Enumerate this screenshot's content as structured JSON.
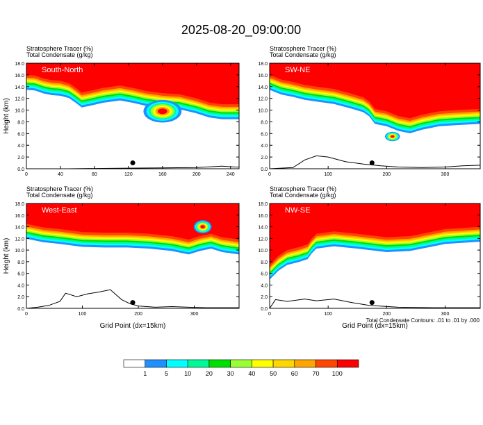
{
  "page": {
    "title": "2025-08-20_09:00:00",
    "footnote": "Total Condensate Contours: .01 to .01 by .000"
  },
  "colorbar": {
    "labels": [
      "1",
      "5",
      "10",
      "20",
      "30",
      "40",
      "50",
      "60",
      "70",
      "100"
    ],
    "colors": [
      "#ffffff",
      "#1e90ff",
      "#00ffff",
      "#00fa9a",
      "#00e000",
      "#9aff32",
      "#ffff00",
      "#ffd700",
      "#ffa500",
      "#ff4500",
      "#ff0000"
    ]
  },
  "chart_data": [
    {
      "type": "heatmap",
      "panel": "South-North",
      "label1": "Stratosphere Tracer   (%)",
      "label2": "Total Condensate   (g/kg)",
      "ylabel": "Height (km)",
      "xlabel": "",
      "xlim": [
        0,
        250
      ],
      "ylim": [
        0,
        18
      ],
      "xticks": [
        "0",
        "40",
        "80",
        "120",
        "160",
        "200",
        "240"
      ],
      "xtick_values": [
        0,
        40,
        80,
        120,
        160,
        200,
        240
      ],
      "yticks": [
        "0.0",
        "2.0",
        "4.0",
        "6.0",
        "8.0",
        "10.0",
        "12.0",
        "14.0",
        "16.0",
        "18.0"
      ],
      "tropopause": [
        [
          0,
          16
        ],
        [
          10,
          15.9
        ],
        [
          20,
          15.4
        ],
        [
          30,
          15.1
        ],
        [
          40,
          15.0
        ],
        [
          50,
          14.6
        ],
        [
          58,
          13.8
        ],
        [
          65,
          13.0
        ],
        [
          75,
          13.3
        ],
        [
          90,
          13.8
        ],
        [
          110,
          14.2
        ],
        [
          125,
          13.8
        ],
        [
          140,
          13.3
        ],
        [
          160,
          12.9
        ],
        [
          180,
          12.7
        ],
        [
          200,
          12.0
        ],
        [
          215,
          11.3
        ],
        [
          230,
          11.0
        ],
        [
          250,
          11.0
        ]
      ],
      "blobs": [
        [
          160,
          9.8,
          14,
          1.2
        ]
      ],
      "terrain": [
        [
          0,
          0
        ],
        [
          50,
          0
        ],
        [
          80,
          0.05
        ],
        [
          120,
          0.1
        ],
        [
          160,
          0.15
        ],
        [
          200,
          0.2
        ],
        [
          230,
          0.45
        ],
        [
          245,
          0.3
        ],
        [
          250,
          0.3
        ]
      ],
      "marker": [
        125,
        1.0
      ]
    },
    {
      "type": "heatmap",
      "panel": "SW-NE",
      "label1": "Stratosphere Tracer   (%)",
      "label2": "Total Condensate   (g/kg)",
      "ylabel": "",
      "xlabel": "",
      "xlim": [
        0,
        360
      ],
      "ylim": [
        0,
        18
      ],
      "xticks": [
        "0",
        "100",
        "200",
        "300"
      ],
      "xtick_values": [
        0,
        100,
        200,
        300
      ],
      "yticks": [
        "0.0",
        "2.0",
        "4.0",
        "6.0",
        "8.0",
        "10.0",
        "12.0",
        "14.0",
        "16.0",
        "18.0"
      ],
      "tropopause": [
        [
          0,
          16
        ],
        [
          20,
          15.2
        ],
        [
          40,
          14.8
        ],
        [
          60,
          14.3
        ],
        [
          80,
          14.0
        ],
        [
          110,
          13.6
        ],
        [
          140,
          12.8
        ],
        [
          160,
          12.2
        ],
        [
          170,
          11.5
        ],
        [
          180,
          10.2
        ],
        [
          200,
          9.8
        ],
        [
          220,
          9.0
        ],
        [
          240,
          8.6
        ],
        [
          260,
          9.2
        ],
        [
          290,
          9.8
        ],
        [
          320,
          10.0
        ],
        [
          360,
          10.2
        ]
      ],
      "blobs": [
        [
          210,
          5.5,
          8,
          0.5
        ]
      ],
      "terrain": [
        [
          0,
          0
        ],
        [
          40,
          0.2
        ],
        [
          60,
          1.5
        ],
        [
          80,
          2.2
        ],
        [
          100,
          2.0
        ],
        [
          130,
          1.2
        ],
        [
          160,
          0.8
        ],
        [
          190,
          0.5
        ],
        [
          220,
          0.3
        ],
        [
          260,
          0.2
        ],
        [
          300,
          0.3
        ],
        [
          330,
          0.5
        ],
        [
          360,
          0.6
        ]
      ],
      "marker": [
        175,
        1.0
      ]
    },
    {
      "type": "heatmap",
      "panel": "West-East",
      "label1": "Stratosphere Tracer   (%)",
      "label2": "Total Condensate   (g/kg)",
      "ylabel": "Height (km)",
      "xlabel": "Grid Point (dx=15km)",
      "xlim": [
        0,
        380
      ],
      "ylim": [
        0,
        18
      ],
      "xticks": [
        "0",
        "100",
        "200",
        "300"
      ],
      "xtick_values": [
        0,
        100,
        200,
        300
      ],
      "yticks": [
        "0.0",
        "2.0",
        "4.0",
        "6.0",
        "8.0",
        "10.0",
        "12.0",
        "14.0",
        "16.0",
        "18.0"
      ],
      "tropopause": [
        [
          0,
          14.5
        ],
        [
          30,
          13.9
        ],
        [
          60,
          13.6
        ],
        [
          100,
          13.1
        ],
        [
          140,
          13.0
        ],
        [
          180,
          13.0
        ],
        [
          220,
          12.8
        ],
        [
          260,
          12.4
        ],
        [
          290,
          11.8
        ],
        [
          310,
          12.4
        ],
        [
          330,
          12.8
        ],
        [
          350,
          12.2
        ],
        [
          380,
          11.8
        ]
      ],
      "blobs": [
        [
          315,
          14.0,
          10,
          0.7
        ]
      ],
      "terrain": [
        [
          0,
          0
        ],
        [
          20,
          0.2
        ],
        [
          40,
          0.5
        ],
        [
          60,
          1.2
        ],
        [
          70,
          2.6
        ],
        [
          90,
          2.0
        ],
        [
          110,
          2.5
        ],
        [
          130,
          2.8
        ],
        [
          150,
          3.2
        ],
        [
          170,
          1.5
        ],
        [
          185,
          0.8
        ],
        [
          200,
          0.4
        ],
        [
          230,
          0.2
        ],
        [
          260,
          0.3
        ],
        [
          290,
          0.2
        ],
        [
          320,
          0.1
        ],
        [
          380,
          0.1
        ]
      ],
      "marker": [
        190,
        1.0
      ]
    },
    {
      "type": "heatmap",
      "panel": "NW-SE",
      "label1": "Stratosphere Tracer   (%)",
      "label2": "Total Condensate   (g/kg)",
      "ylabel": "",
      "xlabel": "Grid Point (dx=15km)",
      "xlim": [
        0,
        360
      ],
      "ylim": [
        0,
        18
      ],
      "xticks": [
        "0",
        "100",
        "200",
        "300"
      ],
      "xtick_values": [
        0,
        100,
        200,
        300
      ],
      "yticks": [
        "0.0",
        "2.0",
        "4.0",
        "6.0",
        "8.0",
        "10.0",
        "12.0",
        "14.0",
        "16.0",
        "18.0"
      ],
      "tropopause": [
        [
          0,
          7.5
        ],
        [
          15,
          9.0
        ],
        [
          30,
          10.0
        ],
        [
          50,
          10.5
        ],
        [
          65,
          11.0
        ],
        [
          72,
          12.0
        ],
        [
          80,
          12.8
        ],
        [
          110,
          13.2
        ],
        [
          150,
          12.8
        ],
        [
          200,
          12.2
        ],
        [
          240,
          12.4
        ],
        [
          270,
          13.0
        ],
        [
          300,
          13.6
        ],
        [
          330,
          13.8
        ],
        [
          360,
          14.0
        ]
      ],
      "blobs": [],
      "terrain": [
        [
          0,
          0
        ],
        [
          10,
          1.5
        ],
        [
          30,
          1.2
        ],
        [
          60,
          1.6
        ],
        [
          80,
          1.3
        ],
        [
          110,
          1.6
        ],
        [
          140,
          1.0
        ],
        [
          170,
          0.5
        ],
        [
          220,
          0.2
        ],
        [
          280,
          0.1
        ],
        [
          360,
          0.1
        ]
      ],
      "marker": [
        175,
        1.0
      ]
    }
  ]
}
